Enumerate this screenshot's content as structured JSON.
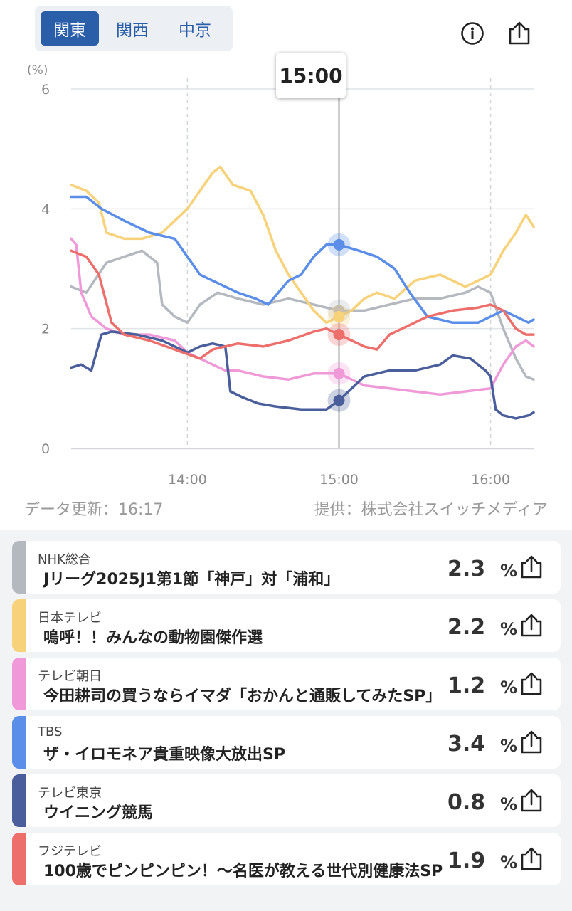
{
  "region_tabs": [
    {
      "label": "関東",
      "active": true
    },
    {
      "label": "関西",
      "active": false
    },
    {
      "label": "中京",
      "active": false
    }
  ],
  "icons": {
    "info": "info-circle-icon",
    "share": "share-upload-icon"
  },
  "tooltip_time": "15:00",
  "chart_data": {
    "type": "line",
    "ylabel": "(%)",
    "ylim": [
      0,
      6
    ],
    "y_ticks": [
      "0",
      "2",
      "4",
      "6"
    ],
    "x_range": [
      "13:14",
      "16:17"
    ],
    "x_ticks": [
      "14:00",
      "15:00",
      "16:00"
    ],
    "cursor_time": "15:00",
    "series": [
      {
        "color": "#b4b8bf",
        "points": [
          [
            "13:14",
            2.7
          ],
          [
            "13:20",
            2.6
          ],
          [
            "13:28",
            3.1
          ],
          [
            "13:35",
            3.2
          ],
          [
            "13:42",
            3.3
          ],
          [
            "13:48",
            3.1
          ],
          [
            "13:50",
            2.4
          ],
          [
            "13:55",
            2.2
          ],
          [
            "14:00",
            2.1
          ],
          [
            "14:05",
            2.4
          ],
          [
            "14:12",
            2.6
          ],
          [
            "14:20",
            2.5
          ],
          [
            "14:30",
            2.4
          ],
          [
            "14:40",
            2.5
          ],
          [
            "14:50",
            2.4
          ],
          [
            "15:00",
            2.3
          ],
          [
            "15:10",
            2.3
          ],
          [
            "15:20",
            2.4
          ],
          [
            "15:30",
            2.5
          ],
          [
            "15:40",
            2.5
          ],
          [
            "15:50",
            2.6
          ],
          [
            "15:55",
            2.7
          ],
          [
            "16:00",
            2.6
          ],
          [
            "16:05",
            2.0
          ],
          [
            "16:10",
            1.5
          ],
          [
            "16:14",
            1.2
          ],
          [
            "16:17",
            1.15
          ]
        ]
      },
      {
        "color": "#f7d27a",
        "points": [
          [
            "13:14",
            4.4
          ],
          [
            "13:20",
            4.3
          ],
          [
            "13:25",
            4.1
          ],
          [
            "13:28",
            3.6
          ],
          [
            "13:35",
            3.5
          ],
          [
            "13:42",
            3.5
          ],
          [
            "13:50",
            3.6
          ],
          [
            "13:55",
            3.8
          ],
          [
            "14:00",
            4.0
          ],
          [
            "14:05",
            4.3
          ],
          [
            "14:10",
            4.6
          ],
          [
            "14:13",
            4.7
          ],
          [
            "14:18",
            4.4
          ],
          [
            "14:25",
            4.3
          ],
          [
            "14:30",
            3.9
          ],
          [
            "14:35",
            3.3
          ],
          [
            "14:40",
            2.9
          ],
          [
            "14:45",
            2.6
          ],
          [
            "14:50",
            2.3
          ],
          [
            "14:55",
            2.1
          ],
          [
            "15:00",
            2.2
          ],
          [
            "15:05",
            2.3
          ],
          [
            "15:10",
            2.5
          ],
          [
            "15:15",
            2.6
          ],
          [
            "15:22",
            2.5
          ],
          [
            "15:30",
            2.8
          ],
          [
            "15:40",
            2.9
          ],
          [
            "15:50",
            2.7
          ],
          [
            "16:00",
            2.9
          ],
          [
            "16:05",
            3.3
          ],
          [
            "16:10",
            3.6
          ],
          [
            "16:14",
            3.9
          ],
          [
            "16:17",
            3.7
          ]
        ]
      },
      {
        "color": "#ef99d8",
        "points": [
          [
            "13:14",
            3.5
          ],
          [
            "13:16",
            3.4
          ],
          [
            "13:18",
            2.6
          ],
          [
            "13:22",
            2.2
          ],
          [
            "13:28",
            2.0
          ],
          [
            "13:35",
            1.9
          ],
          [
            "13:45",
            1.9
          ],
          [
            "13:55",
            1.8
          ],
          [
            "14:00",
            1.6
          ],
          [
            "14:05",
            1.5
          ],
          [
            "14:10",
            1.4
          ],
          [
            "14:15",
            1.3
          ],
          [
            "14:20",
            1.3
          ],
          [
            "14:30",
            1.2
          ],
          [
            "14:40",
            1.15
          ],
          [
            "14:50",
            1.25
          ],
          [
            "15:00",
            1.25
          ],
          [
            "15:10",
            1.05
          ],
          [
            "15:20",
            1.0
          ],
          [
            "15:30",
            0.95
          ],
          [
            "15:40",
            0.9
          ],
          [
            "15:50",
            0.95
          ],
          [
            "16:00",
            1.0
          ],
          [
            "16:05",
            1.4
          ],
          [
            "16:10",
            1.7
          ],
          [
            "16:14",
            1.8
          ],
          [
            "16:17",
            1.7
          ]
        ]
      },
      {
        "color": "#5b8ee8",
        "points": [
          [
            "13:14",
            4.2
          ],
          [
            "13:20",
            4.2
          ],
          [
            "13:26",
            4.0
          ],
          [
            "13:35",
            3.8
          ],
          [
            "13:45",
            3.6
          ],
          [
            "13:55",
            3.5
          ],
          [
            "14:00",
            3.2
          ],
          [
            "14:05",
            2.9
          ],
          [
            "14:10",
            2.8
          ],
          [
            "14:15",
            2.7
          ],
          [
            "14:20",
            2.6
          ],
          [
            "14:27",
            2.5
          ],
          [
            "14:32",
            2.4
          ],
          [
            "14:40",
            2.8
          ],
          [
            "14:45",
            2.9
          ],
          [
            "14:50",
            3.2
          ],
          [
            "14:55",
            3.4
          ],
          [
            "15:00",
            3.4
          ],
          [
            "15:08",
            3.3
          ],
          [
            "15:15",
            3.2
          ],
          [
            "15:22",
            3.0
          ],
          [
            "15:28",
            2.6
          ],
          [
            "15:35",
            2.2
          ],
          [
            "15:45",
            2.1
          ],
          [
            "15:55",
            2.1
          ],
          [
            "16:00",
            2.2
          ],
          [
            "16:05",
            2.3
          ],
          [
            "16:10",
            2.2
          ],
          [
            "16:15",
            2.1
          ],
          [
            "16:17",
            2.15
          ]
        ]
      },
      {
        "color": "#4a5e9c",
        "points": [
          [
            "13:14",
            1.35
          ],
          [
            "13:18",
            1.4
          ],
          [
            "13:22",
            1.3
          ],
          [
            "13:26",
            1.9
          ],
          [
            "13:30",
            1.95
          ],
          [
            "13:40",
            1.9
          ],
          [
            "13:50",
            1.8
          ],
          [
            "13:55",
            1.7
          ],
          [
            "14:00",
            1.6
          ],
          [
            "14:05",
            1.7
          ],
          [
            "14:10",
            1.75
          ],
          [
            "14:15",
            1.7
          ],
          [
            "14:17",
            0.95
          ],
          [
            "14:22",
            0.85
          ],
          [
            "14:28",
            0.75
          ],
          [
            "14:35",
            0.7
          ],
          [
            "14:45",
            0.65
          ],
          [
            "14:55",
            0.65
          ],
          [
            "15:00",
            0.8
          ],
          [
            "15:05",
            1.0
          ],
          [
            "15:10",
            1.2
          ],
          [
            "15:20",
            1.3
          ],
          [
            "15:30",
            1.3
          ],
          [
            "15:40",
            1.4
          ],
          [
            "15:45",
            1.55
          ],
          [
            "15:52",
            1.5
          ],
          [
            "15:58",
            1.3
          ],
          [
            "16:00",
            1.2
          ],
          [
            "16:02",
            0.65
          ],
          [
            "16:05",
            0.55
          ],
          [
            "16:10",
            0.5
          ],
          [
            "16:15",
            0.55
          ],
          [
            "16:17",
            0.6
          ]
        ]
      },
      {
        "color": "#ec6f6c",
        "points": [
          [
            "13:14",
            3.3
          ],
          [
            "13:20",
            3.2
          ],
          [
            "13:25",
            2.9
          ],
          [
            "13:30",
            2.1
          ],
          [
            "13:35",
            1.9
          ],
          [
            "13:45",
            1.8
          ],
          [
            "13:55",
            1.65
          ],
          [
            "14:05",
            1.5
          ],
          [
            "14:10",
            1.65
          ],
          [
            "14:20",
            1.75
          ],
          [
            "14:30",
            1.7
          ],
          [
            "14:40",
            1.8
          ],
          [
            "14:50",
            1.95
          ],
          [
            "14:55",
            2.0
          ],
          [
            "15:00",
            1.9
          ],
          [
            "15:05",
            1.8
          ],
          [
            "15:10",
            1.7
          ],
          [
            "15:15",
            1.65
          ],
          [
            "15:20",
            1.9
          ],
          [
            "15:25",
            2.0
          ],
          [
            "15:35",
            2.2
          ],
          [
            "15:45",
            2.3
          ],
          [
            "15:55",
            2.35
          ],
          [
            "16:00",
            2.4
          ],
          [
            "16:05",
            2.3
          ],
          [
            "16:10",
            2.0
          ],
          [
            "16:14",
            1.9
          ],
          [
            "16:17",
            1.9
          ]
        ]
      }
    ],
    "cursor_points": [
      {
        "color": "#5b8ee8",
        "value": 3.4
      },
      {
        "color": "#b4b8bf",
        "value": 2.3
      },
      {
        "color": "#f7d27a",
        "value": 2.2
      },
      {
        "color": "#ec6f6c",
        "value": 1.9
      },
      {
        "color": "#ef99d8",
        "value": 1.25
      },
      {
        "color": "#4a5e9c",
        "value": 0.8
      }
    ]
  },
  "footer": {
    "updated": "データ更新：16:17",
    "provider": "提供：株式会社スイッチメディア"
  },
  "channels": [
    {
      "station": "NHK総合",
      "program": "Jリーグ2025J1第1節「神戸」対「浦和」",
      "value": "2.3",
      "unit": "%",
      "color": "#b4b8bf"
    },
    {
      "station": "日本テレビ",
      "program": "嗚呼！！みんなの動物園傑作選",
      "value": "2.2",
      "unit": "%",
      "color": "#f7d27a"
    },
    {
      "station": "テレビ朝日",
      "program": "今田耕司の買うならイマダ「おかんと通販してみたSP」",
      "value": "1.2",
      "unit": "%",
      "color": "#ef99d8"
    },
    {
      "station": "TBS",
      "program": "ザ・イロモネア貴重映像大放出SP",
      "value": "3.4",
      "unit": "%",
      "color": "#5b8ee8"
    },
    {
      "station": "テレビ東京",
      "program": "ウイニング競馬",
      "value": "0.8",
      "unit": "%",
      "color": "#4a5e9c"
    },
    {
      "station": "フジテレビ",
      "program": "100歳でピンピンピン！～名医が教える世代別健康法SP",
      "value": "1.9",
      "unit": "%",
      "color": "#ec6f6c"
    }
  ]
}
